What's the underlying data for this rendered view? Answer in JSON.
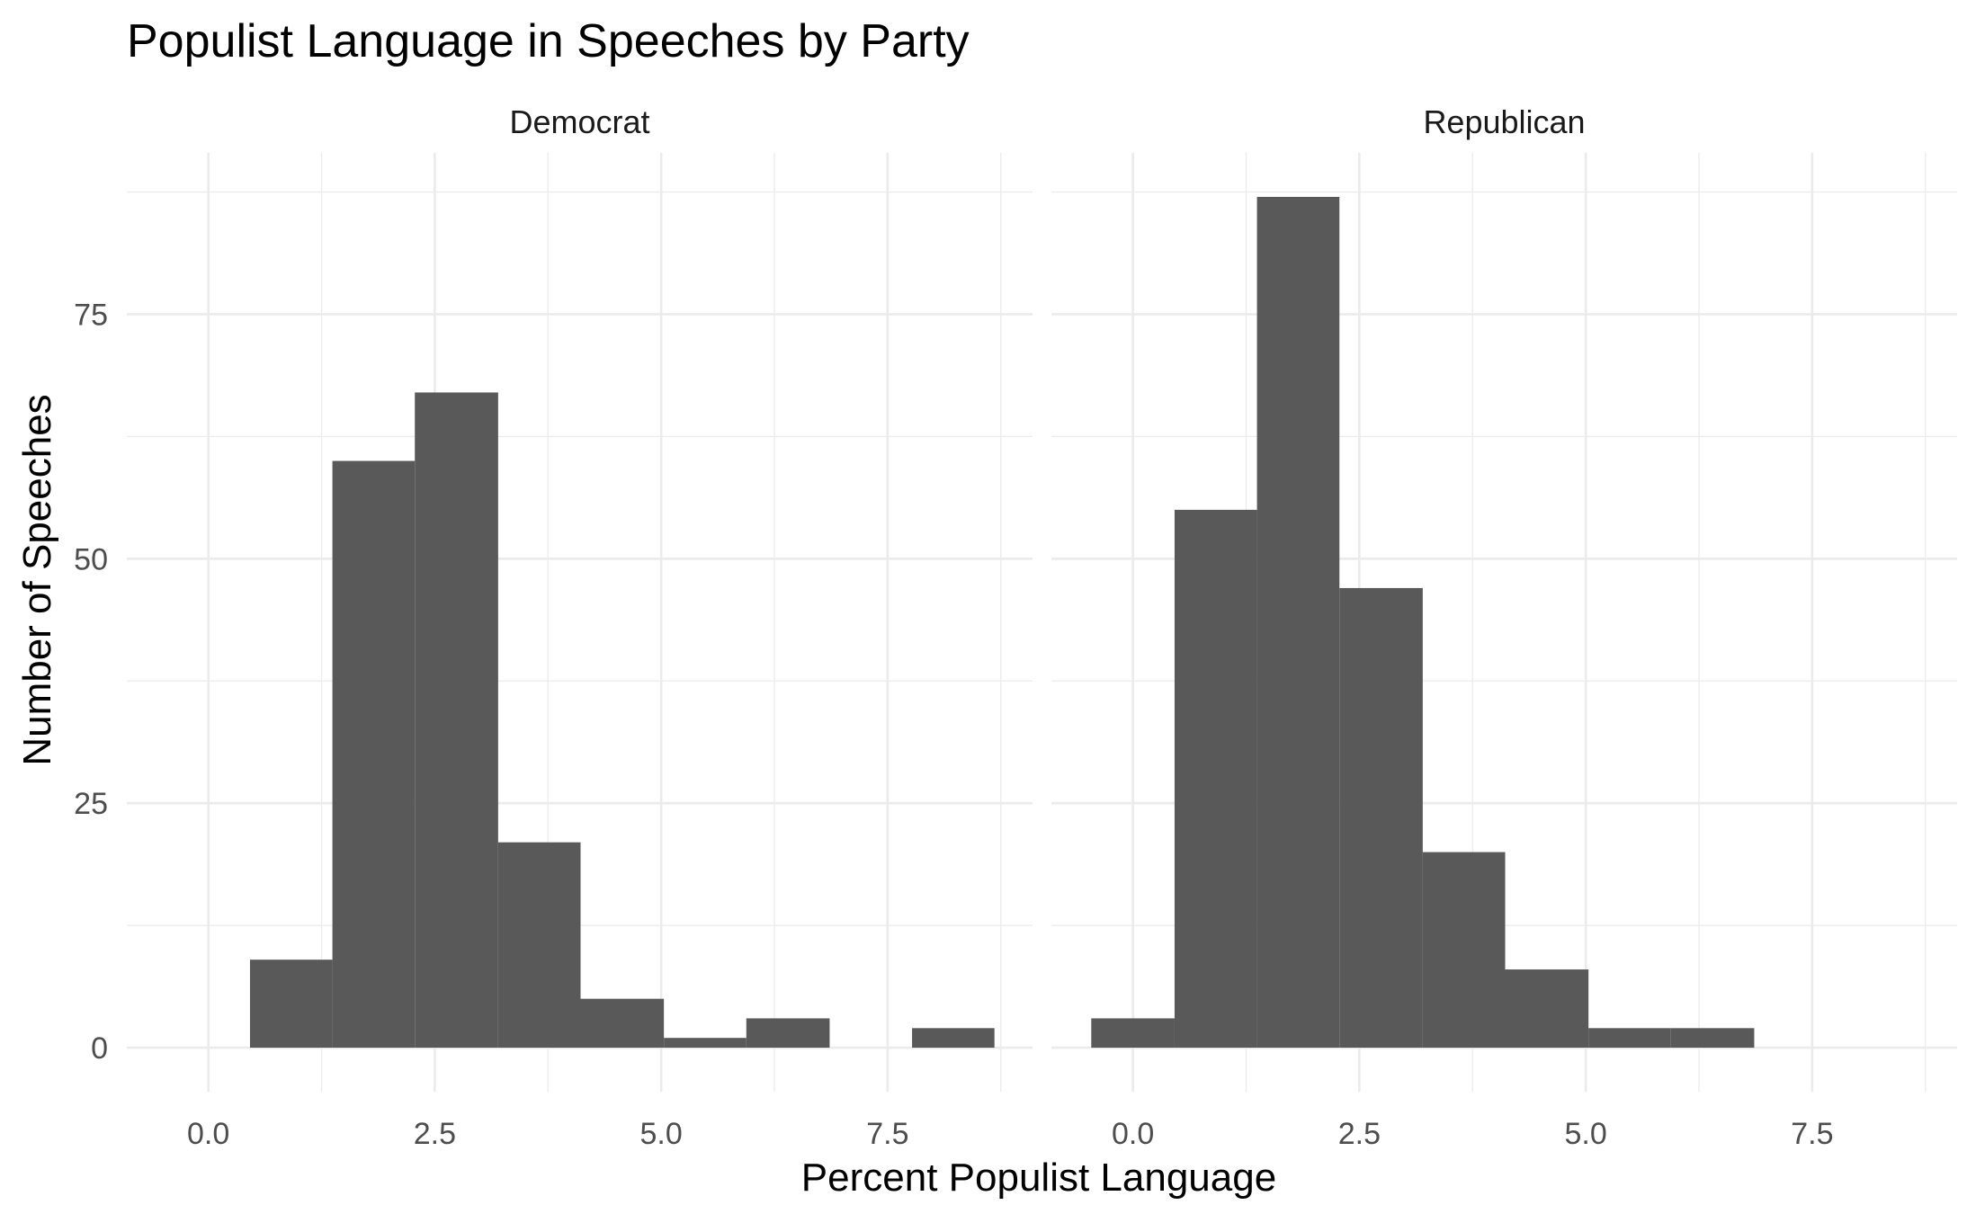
{
  "chart_data": {
    "type": "bar",
    "title": "Populist Language in Speeches by Party",
    "xlabel": "Percent Populist Language",
    "ylabel": "Number of Speeches",
    "xlim": [
      -0.9,
      9.1
    ],
    "ylim": [
      -4.5,
      91.5
    ],
    "x_ticks": [
      0.0,
      2.5,
      5.0,
      7.5
    ],
    "x_tick_labels": [
      "0.0",
      "2.5",
      "5.0",
      "7.5"
    ],
    "y_ticks": [
      0,
      25,
      50,
      75
    ],
    "y_tick_labels": [
      "0",
      "25",
      "50",
      "75"
    ],
    "grid": true,
    "bin_width": 0.914,
    "panels": [
      {
        "name": "Democrat",
        "bins": [
          {
            "x0": 0.46,
            "x1": 1.37,
            "count": 9
          },
          {
            "x0": 1.37,
            "x1": 2.28,
            "count": 60
          },
          {
            "x0": 2.28,
            "x1": 3.2,
            "count": 67
          },
          {
            "x0": 3.2,
            "x1": 4.11,
            "count": 21
          },
          {
            "x0": 4.11,
            "x1": 5.03,
            "count": 5
          },
          {
            "x0": 5.03,
            "x1": 5.94,
            "count": 1
          },
          {
            "x0": 5.94,
            "x1": 6.86,
            "count": 3
          },
          {
            "x0": 6.86,
            "x1": 7.77,
            "count": 0
          },
          {
            "x0": 7.77,
            "x1": 8.68,
            "count": 2
          }
        ]
      },
      {
        "name": "Republican",
        "bins": [
          {
            "x0": -0.46,
            "x1": 0.46,
            "count": 3
          },
          {
            "x0": 0.46,
            "x1": 1.37,
            "count": 55
          },
          {
            "x0": 1.37,
            "x1": 2.28,
            "count": 87
          },
          {
            "x0": 2.28,
            "x1": 3.2,
            "count": 47
          },
          {
            "x0": 3.2,
            "x1": 4.11,
            "count": 20
          },
          {
            "x0": 4.11,
            "x1": 5.03,
            "count": 8
          },
          {
            "x0": 5.03,
            "x1": 5.94,
            "count": 2
          },
          {
            "x0": 5.94,
            "x1": 6.86,
            "count": 2
          }
        ]
      }
    ]
  }
}
